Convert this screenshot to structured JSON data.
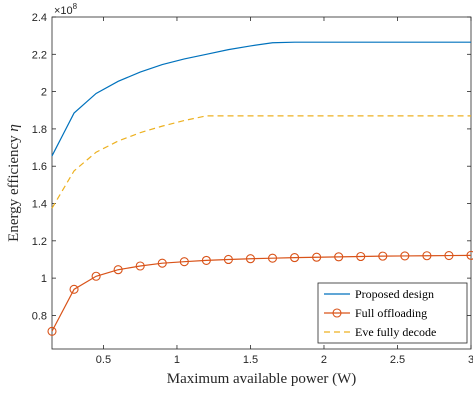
{
  "chart_data": {
    "type": "line",
    "xlabel": "Maximum available power (W)",
    "ylabel_main": "Energy efficiency ",
    "ylabel_symbol": "η",
    "y_exponent_base": "×10",
    "y_exponent_power": "8",
    "xlim": [
      0.15,
      3.0
    ],
    "ylim": [
      0.62,
      2.4
    ],
    "y_scale_factor": 100000000,
    "x_ticks": [
      0.5,
      1,
      1.5,
      2,
      2.5,
      3
    ],
    "x_tick_labels": [
      "0.5",
      "1",
      "1.5",
      "2",
      "2.5",
      "3"
    ],
    "y_ticks": [
      0.8,
      1.0,
      1.2,
      1.4,
      1.6,
      1.8,
      2.0,
      2.2,
      2.4
    ],
    "y_tick_labels": [
      "0.8",
      "1",
      "1.2",
      "1.4",
      "1.6",
      "1.8",
      "2",
      "2.2",
      "2.4"
    ],
    "grid": false,
    "legend_position": "bottom-right",
    "x": [
      0.15,
      0.3,
      0.45,
      0.6,
      0.75,
      0.9,
      1.05,
      1.2,
      1.35,
      1.5,
      1.65,
      1.8,
      1.95,
      2.1,
      2.25,
      2.4,
      2.55,
      2.7,
      2.85,
      3.0
    ],
    "series": [
      {
        "name": "Proposed design",
        "color": "#0072BD",
        "style": "solid",
        "marker": "none",
        "values": [
          1.655,
          1.885,
          1.99,
          2.055,
          2.105,
          2.145,
          2.175,
          2.2,
          2.225,
          2.245,
          2.262,
          2.265,
          2.265,
          2.265,
          2.265,
          2.265,
          2.265,
          2.265,
          2.265,
          2.265
        ]
      },
      {
        "name": "Full offloading",
        "color": "#D95319",
        "style": "solid",
        "marker": "circle",
        "values": [
          0.715,
          0.94,
          1.01,
          1.045,
          1.065,
          1.08,
          1.088,
          1.095,
          1.1,
          1.104,
          1.107,
          1.11,
          1.112,
          1.114,
          1.116,
          1.118,
          1.119,
          1.12,
          1.121,
          1.122
        ]
      },
      {
        "name": "Eve fully decode",
        "color": "#EDB120",
        "style": "dashed",
        "marker": "none",
        "values": [
          1.375,
          1.575,
          1.675,
          1.735,
          1.78,
          1.815,
          1.845,
          1.87,
          1.87,
          1.87,
          1.87,
          1.87,
          1.87,
          1.87,
          1.87,
          1.87,
          1.87,
          1.87,
          1.87,
          1.87
        ]
      }
    ]
  }
}
